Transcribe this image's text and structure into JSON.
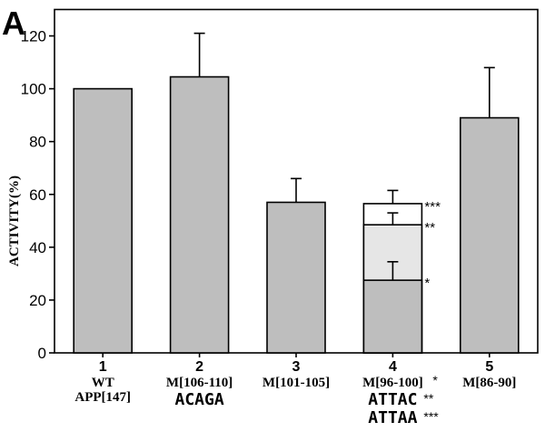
{
  "panel_label": "A",
  "chart_data": {
    "type": "bar",
    "ylabel": "ACTIVITY(%)",
    "ylim": [
      0,
      130
    ],
    "yticks": [
      0,
      20,
      40,
      60,
      80,
      100,
      120
    ],
    "grid": false,
    "categories": [
      {
        "number": "1",
        "lines": [
          "WT",
          "APP[147]"
        ]
      },
      {
        "number": "2",
        "lines": [
          "M[106-110]"
        ],
        "seq_lines": [
          "ACAGA"
        ]
      },
      {
        "number": "3",
        "lines": [
          "M[101-105]"
        ]
      },
      {
        "number": "4",
        "lines": [
          "M[96-100]"
        ],
        "lines_mark": "*",
        "seq_lines": [
          "ATTAC",
          "ATTAA"
        ],
        "seq_marks": [
          "**",
          "***"
        ]
      },
      {
        "number": "5",
        "lines": [
          "M[86-90]"
        ]
      }
    ],
    "bars": [
      {
        "value": 100,
        "error": 0,
        "fill": "#bebebe"
      },
      {
        "value": 104.5,
        "error": 16.5,
        "fill": "#bebebe"
      },
      {
        "value": 57,
        "error": 9,
        "fill": "#bebebe"
      },
      {
        "stacked": [
          {
            "value": 27.5,
            "error": 7,
            "fill": "#bebebe",
            "mark": "*"
          },
          {
            "value": 48.5,
            "error": 4.5,
            "fill": "#e6e6e6",
            "mark": "**"
          },
          {
            "value": 56.5,
            "error": 5,
            "fill": "#ffffff",
            "mark": "***"
          }
        ]
      },
      {
        "value": 89,
        "error": 19,
        "fill": "#bebebe"
      }
    ]
  }
}
